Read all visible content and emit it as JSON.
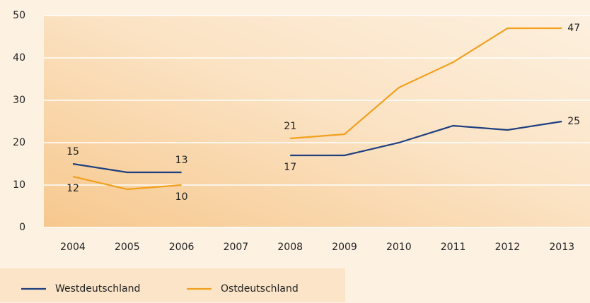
{
  "chart_data": {
    "type": "line",
    "categories": [
      "2004",
      "2005",
      "2006",
      "2007",
      "2008",
      "2009",
      "2010",
      "2011",
      "2012",
      "2013"
    ],
    "series": [
      {
        "name": "Westdeutschland",
        "color": "#1f3f7f",
        "values": [
          15,
          13,
          13,
          null,
          17,
          17,
          20,
          24,
          23,
          25
        ]
      },
      {
        "name": "Ostdeutschland",
        "color": "#f2a01e",
        "values": [
          12,
          9,
          10,
          null,
          21,
          22,
          33,
          39,
          47,
          47
        ]
      }
    ],
    "ylim": [
      0,
      50
    ],
    "yticks": [
      0,
      10,
      20,
      30,
      40,
      50
    ],
    "grid": true,
    "legend": "bottom"
  }
}
